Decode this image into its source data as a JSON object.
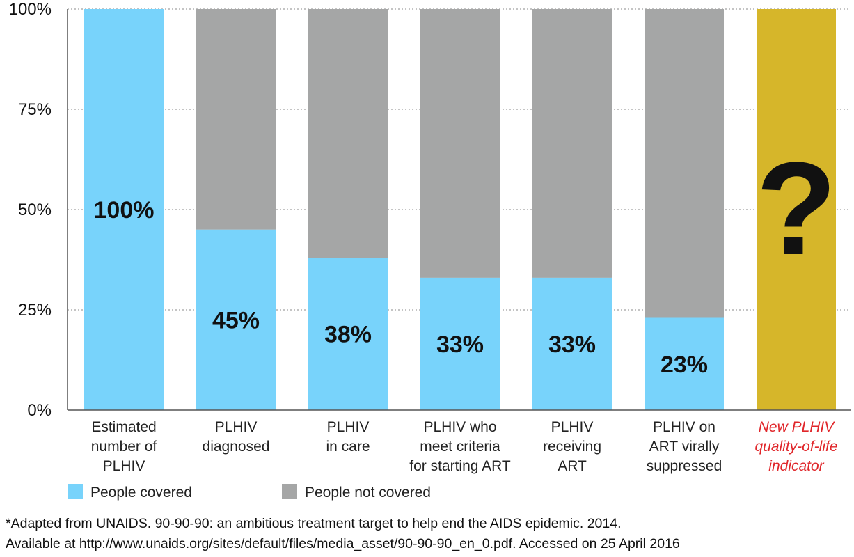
{
  "chart_data": {
    "type": "bar",
    "stacked": true,
    "categories": [
      [
        "Estimated",
        "number of",
        "PLHIV"
      ],
      [
        "PLHIV",
        "diagnosed"
      ],
      [
        "PLHIV",
        "in care"
      ],
      [
        "PLHIV who",
        "meet criteria",
        "for starting ART"
      ],
      [
        "PLHIV",
        "receiving",
        "ART"
      ],
      [
        "PLHIV on",
        "ART virally",
        "suppressed"
      ],
      [
        "New PLHIV",
        "quality-of-life",
        "indicator"
      ]
    ],
    "series": [
      {
        "name": "People covered",
        "color": "#78d3fb",
        "values": [
          100,
          45,
          38,
          33,
          33,
          23,
          null
        ]
      },
      {
        "name": "People not covered",
        "color": "#a5a6a6",
        "values": [
          0,
          55,
          62,
          67,
          67,
          77,
          null
        ]
      }
    ],
    "data_labels": [
      "100%",
      "45%",
      "38%",
      "33%",
      "33%",
      "23%",
      "?"
    ],
    "special_bar": {
      "index": 6,
      "color": "#d6b62a",
      "label": "?",
      "label_color": "#e0262a"
    },
    "yticks": [
      "0%",
      "25%",
      "50%",
      "75%",
      "100%"
    ],
    "ylim": [
      0,
      100
    ],
    "grid": "dotted horizontal",
    "legend_position": "bottom-left"
  },
  "footnote": {
    "line1": "*Adapted from UNAIDS. 90-90-90: an ambitious treatment target to help end the AIDS epidemic. 2014.",
    "line2": "Available at http://www.unaids.org/sites/default/files/media_asset/90-90-90_en_0.pdf. Accessed on 25 April 2016"
  }
}
